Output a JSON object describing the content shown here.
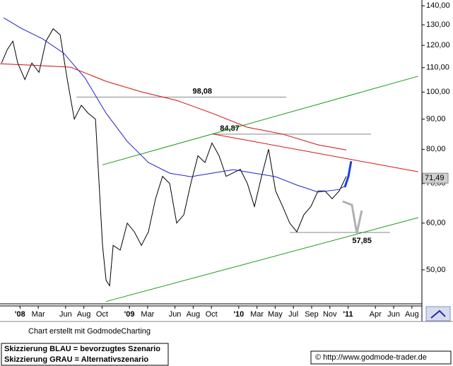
{
  "chart_data": {
    "type": "line",
    "log_scale": true,
    "xlim": [
      -2.2,
      44.1
    ],
    "ylim": [
      43.8,
      143.2
    ],
    "xticks": [
      {
        "value": 0,
        "label": "'08"
      },
      {
        "value": 2,
        "label": "Mar"
      },
      {
        "value": 5,
        "label": "Jun"
      },
      {
        "value": 7,
        "label": "Aug"
      },
      {
        "value": 9,
        "label": "Oct"
      },
      {
        "value": 12,
        "label": "'09"
      },
      {
        "value": 14,
        "label": "Mar"
      },
      {
        "value": 17,
        "label": "Jun"
      },
      {
        "value": 19,
        "label": "Aug"
      },
      {
        "value": 21,
        "label": "Oct"
      },
      {
        "value": 24,
        "label": "'10"
      },
      {
        "value": 26,
        "label": "Mar"
      },
      {
        "value": 28,
        "label": "May"
      },
      {
        "value": 30,
        "label": "Jul"
      },
      {
        "value": 32,
        "label": "Sep"
      },
      {
        "value": 34,
        "label": "Nov"
      },
      {
        "value": 36,
        "label": "'11"
      },
      {
        "value": 39,
        "label": "Apr"
      },
      {
        "value": 41,
        "label": "Jun"
      },
      {
        "value": 43,
        "label": "Aug"
      }
    ],
    "yticks": [
      {
        "value": 140,
        "label": "140,00"
      },
      {
        "value": 130,
        "label": "130,00"
      },
      {
        "value": 120,
        "label": "120,00"
      },
      {
        "value": 110,
        "label": "110,00"
      },
      {
        "value": 100,
        "label": "100,00"
      },
      {
        "value": 90,
        "label": "90,00"
      },
      {
        "value": 80,
        "label": "80,00"
      },
      {
        "value": 70,
        "label": "70,00"
      },
      {
        "value": 60,
        "label": "60,00"
      },
      {
        "value": 50,
        "label": "50,00"
      }
    ],
    "series": [
      {
        "color": "#000000",
        "x": [
          -2.03,
          -1.41,
          -0.79,
          -0.25,
          0.53,
          1.3,
          2.08,
          2.85,
          3.63,
          4.4,
          5.18,
          5.95,
          6.73,
          7.5,
          8.28,
          8.67,
          9.05,
          9.44,
          9.83,
          10.22,
          10.99,
          11.77,
          12.54,
          13.32,
          14.09,
          14.87,
          15.64,
          16.42,
          17.19,
          17.97,
          18.74,
          19.52,
          20.29,
          21.07,
          21.84,
          22.62,
          23.4,
          24.17,
          24.95,
          25.72,
          26.5,
          27.27,
          28.05,
          28.82,
          29.6,
          30.37,
          31.15,
          31.92,
          32.7,
          33.47,
          34.25,
          35.02,
          35.8
        ],
        "values": [
          112,
          118,
          122,
          112,
          105,
          112,
          108,
          122,
          128,
          125,
          105,
          90,
          95,
          92,
          90,
          70,
          55,
          48,
          47,
          55,
          54,
          60,
          58,
          55,
          58,
          66,
          72,
          70,
          60,
          62,
          70,
          78,
          76,
          82,
          78,
          72,
          73,
          74,
          70,
          64,
          72,
          80,
          68,
          64,
          60,
          58,
          62,
          64,
          68,
          68,
          66,
          68,
          72
        ]
      },
      {
        "color": "#2020d0",
        "x": [
          -1.8,
          0.14,
          2.47,
          4.79,
          7.12,
          9.44,
          11.77,
          14.09,
          16.42,
          18.74,
          21.07,
          23.4,
          25.72,
          28.05,
          30.37,
          32.7,
          35.02,
          35.8
        ],
        "values": [
          133.6,
          128.2,
          123.1,
          116.4,
          105.7,
          92.1,
          82.5,
          76,
          72.9,
          71.9,
          72.9,
          73.9,
          72.9,
          71.9,
          69.6,
          67.7,
          68.4,
          69.6
        ]
      },
      {
        "color": "#cc1010",
        "x": [
          -2.19,
          1.69,
          5.57,
          9.44,
          13.32,
          17.2,
          21.07,
          24.95,
          28.82,
          32.7,
          35.8
        ],
        "values": [
          111.7,
          111,
          110.2,
          104.3,
          100.1,
          96.8,
          92.1,
          87.2,
          84.9,
          81.4,
          79.8
        ]
      }
    ],
    "trendlines": [
      {
        "color": "#1a9a1a",
        "x": [
          9.05,
          43.7
        ],
        "values": [
          75.3,
          106.4
        ]
      },
      {
        "color": "#1a9a1a",
        "x": [
          9.44,
          43.7
        ],
        "values": [
          44.2,
          61.3
        ]
      },
      {
        "color": "#dd1111",
        "x": [
          21.2,
          43.7
        ],
        "values": [
          84.9,
          73.3
        ]
      }
    ],
    "projections": [
      {
        "color": "#1a3fe0",
        "x": [
          35.64,
          36.03,
          36.34
        ],
        "values": [
          69.0,
          71.9,
          76.4
        ]
      },
      {
        "color": "#b0b0b0",
        "x": [
          35.41,
          36.42,
          36.96,
          37.5
        ],
        "values": [
          65.3,
          64.4,
          57.7,
          63.0
        ]
      }
    ],
    "levels": [
      {
        "value": 98.08,
        "label": "98,08",
        "x": [
          6.19,
          29.21
        ]
      },
      {
        "value": 84.87,
        "label": "84,87",
        "x": [
          21.07,
          38.51
        ]
      },
      {
        "value": 57.85,
        "label": "57,85",
        "x": [
          29.6,
          40.6
        ]
      }
    ],
    "last_price": {
      "value": 71.49,
      "label": "71,49"
    }
  },
  "footer": {
    "credit": "Chart erstellt mit GodmodeCharting",
    "legend_blue": "Skizzierung BLAU = bevorzugtes Szenario",
    "legend_grey": "Skizzierung GRAU = Alternativszenario",
    "copyright": "© http://www.godmode-trader.de"
  }
}
